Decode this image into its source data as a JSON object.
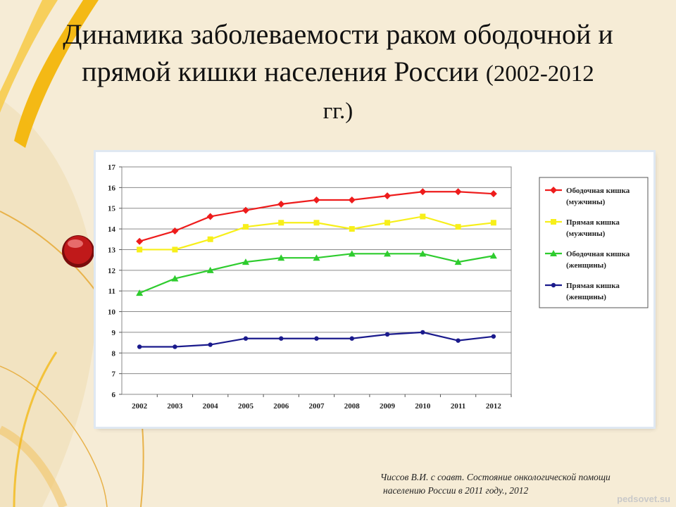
{
  "title": {
    "line1": "Динамика заболеваемости раком ободочной и",
    "line2": "прямой кишки населения России",
    "years": "(2002-2012",
    "line3": "гг.)"
  },
  "source": {
    "line1": "Чиссов В.И. с соавт. Состояние онкологической помощи",
    "line2": "населению России в 2011 году., 2012"
  },
  "watermark": "pedsovet.su",
  "colors": {
    "background": "#f6ecd6",
    "ribbon": "#f4b400",
    "button": "#c0191a"
  },
  "chart_data": {
    "type": "line",
    "categories": [
      "2002",
      "2003",
      "2004",
      "2005",
      "2006",
      "2007",
      "2008",
      "2009",
      "2010",
      "2011",
      "2012"
    ],
    "ylim": [
      6,
      17
    ],
    "yticks": [
      6,
      7,
      8,
      9,
      10,
      11,
      12,
      13,
      14,
      15,
      16,
      17
    ],
    "grid": true,
    "legend_position": "right",
    "series": [
      {
        "name": "Ободочная кишка (мужчины)",
        "label_line1": "Ободочная кишка",
        "label_line2": "(мужчины)",
        "color": "#ee1c1c",
        "marker": "diamond",
        "values": [
          13.4,
          13.9,
          14.6,
          14.9,
          15.2,
          15.4,
          15.4,
          15.6,
          15.8,
          15.8,
          15.7
        ]
      },
      {
        "name": "Прямая кишка (мужчины)",
        "label_line1": "Прямая кишка",
        "label_line2": "(мужчины)",
        "color": "#f7ef1a",
        "marker": "square",
        "values": [
          13.0,
          13.0,
          13.5,
          14.1,
          14.3,
          14.3,
          14.0,
          14.3,
          14.6,
          14.1,
          14.3
        ]
      },
      {
        "name": "Ободочная кишка (женщины)",
        "label_line1": "Ободочная кишка",
        "label_line2": "(женщины)",
        "color": "#2ecc2e",
        "marker": "triangle",
        "values": [
          10.9,
          11.6,
          12.0,
          12.4,
          12.6,
          12.6,
          12.8,
          12.8,
          12.8,
          12.4,
          12.7
        ]
      },
      {
        "name": "Прямая кишка (женщины)",
        "label_line1": "Прямая кишка",
        "label_line2": "(женщины)",
        "color": "#1a1a8c",
        "marker": "circle",
        "values": [
          8.3,
          8.3,
          8.4,
          8.7,
          8.7,
          8.7,
          8.7,
          8.9,
          9.0,
          8.6,
          8.8
        ]
      }
    ]
  }
}
